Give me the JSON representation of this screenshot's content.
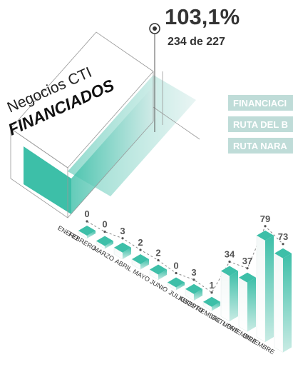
{
  "header": {
    "percent": "103,1%",
    "detail": "234 de 227"
  },
  "title": {
    "line1": "Negocios CTI",
    "line2": "FINANCIADOS"
  },
  "buttons": [
    "FINANCIACI",
    "RUTA DEL B",
    "RUTA NARA"
  ],
  "chart_data": {
    "type": "bar",
    "categories": [
      "ENERO",
      "FEBRERO",
      "MARZO",
      "ABRIL",
      "MAYO",
      "JUNIO",
      "JULIO",
      "AGOSTO",
      "SEPTIEMBRE",
      "OCTUBRE",
      "NOVIEMBRE",
      "DICIEMBRE"
    ],
    "values": [
      0,
      0,
      3,
      2,
      2,
      0,
      3,
      1,
      34,
      37,
      79,
      73
    ],
    "color": "#3dbfa8"
  }
}
